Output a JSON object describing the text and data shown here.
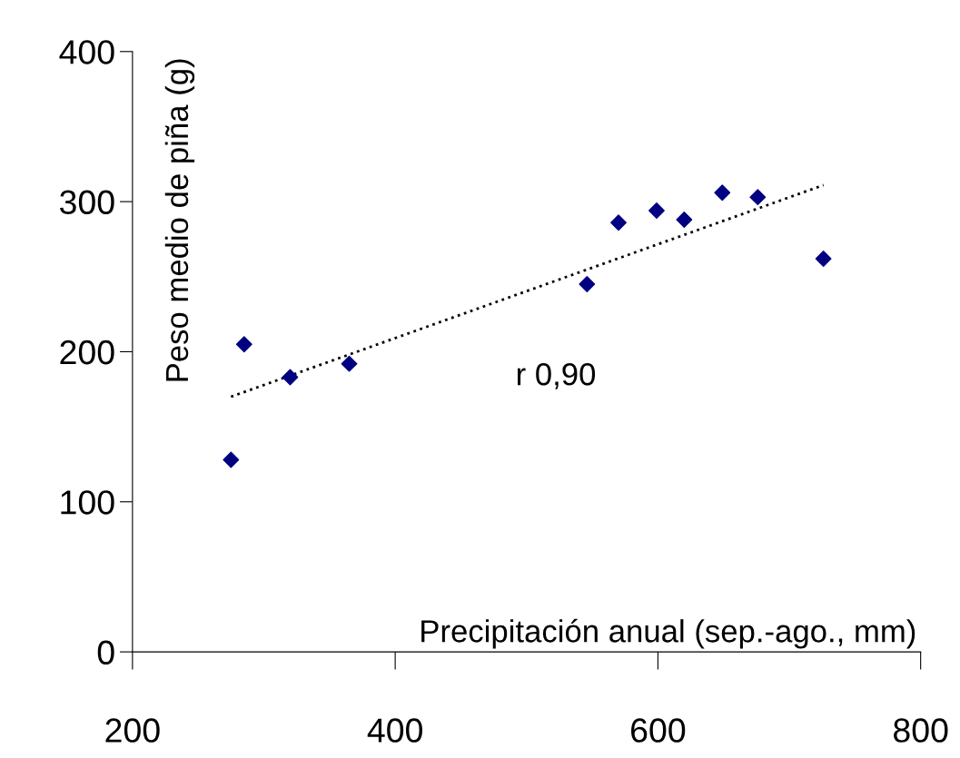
{
  "chart_data": {
    "type": "scatter",
    "xlabel": "Precipitación anual (sep.-ago., mm)",
    "ylabel": "Peso medio de piña (g)",
    "x": [
      275,
      285,
      320,
      365,
      546,
      570,
      599,
      620,
      649,
      676,
      726
    ],
    "series": [
      {
        "color": "#000080",
        "marker": "diamond",
        "values": [
          128,
          205,
          183,
          192,
          245,
          286,
          294,
          288,
          306,
          303,
          262
        ]
      },
      {
        "type": "line",
        "color": "#000000",
        "line_style": "dotted",
        "x": [
          275,
          726
        ],
        "values": [
          170,
          311
        ]
      }
    ],
    "annotations": [
      "r 0,90"
    ],
    "xlim": [
      200,
      800
    ],
    "xticks": [
      200,
      400,
      600,
      800
    ],
    "ylim": [
      0,
      400
    ],
    "yticks": [
      0,
      100,
      200,
      300,
      400
    ],
    "grid": false,
    "legend": false
  }
}
